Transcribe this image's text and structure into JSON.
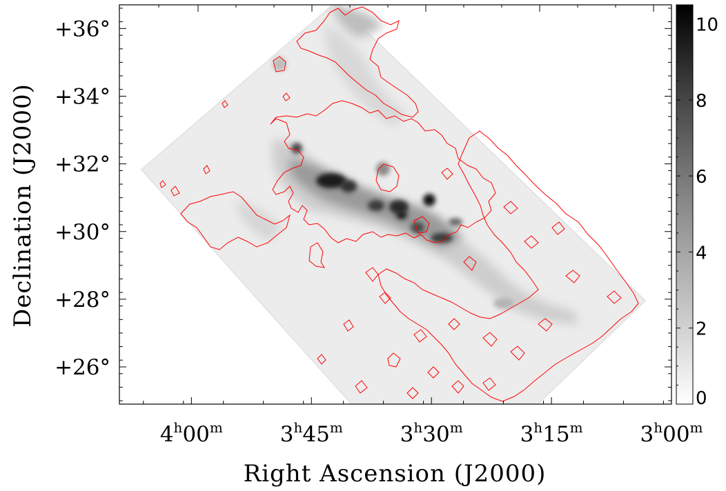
{
  "chart_data": {
    "type": "heatmap",
    "title": "",
    "xlabel": "Right Ascension (J2000)",
    "ylabel": "Declination (J2000)",
    "x_ticks": [
      {
        "h": "4",
        "m": "00"
      },
      {
        "h": "3",
        "m": "45"
      },
      {
        "h": "3",
        "m": "30"
      },
      {
        "h": "3",
        "m": "15"
      },
      {
        "h": "3",
        "m": "00"
      }
    ],
    "x_unit_hour": "h",
    "x_unit_min": "m",
    "y_ticks": [
      "+36°",
      "+34°",
      "+32°",
      "+30°",
      "+28°",
      "+26°"
    ],
    "y_values_deg": [
      36,
      34,
      32,
      30,
      28,
      26
    ],
    "ra_range_hours": [
      4.15,
      3.0
    ],
    "dec_range_deg": [
      24.9,
      36.7
    ],
    "colorbar": {
      "ticks": [
        "10",
        "8",
        "6",
        "4",
        "2",
        "0"
      ],
      "values": [
        10,
        8,
        6,
        4,
        2,
        0
      ],
      "range": [
        0,
        10.5
      ],
      "colormap": "grayscale, white (low) to black (high)"
    },
    "contour_color": "#ff0000",
    "peaks": [
      {
        "ra": "3h42m",
        "dec": 31.6,
        "level": 9
      },
      {
        "ra": "3h28m",
        "dec": 31.0,
        "level": 10
      },
      {
        "ra": "3h33m",
        "dec": 30.6,
        "level": 8
      },
      {
        "ra": "3h26m",
        "dec": 29.8,
        "level": 7
      },
      {
        "ra": "3h47m",
        "dec": 32.6,
        "level": 6
      }
    ]
  }
}
